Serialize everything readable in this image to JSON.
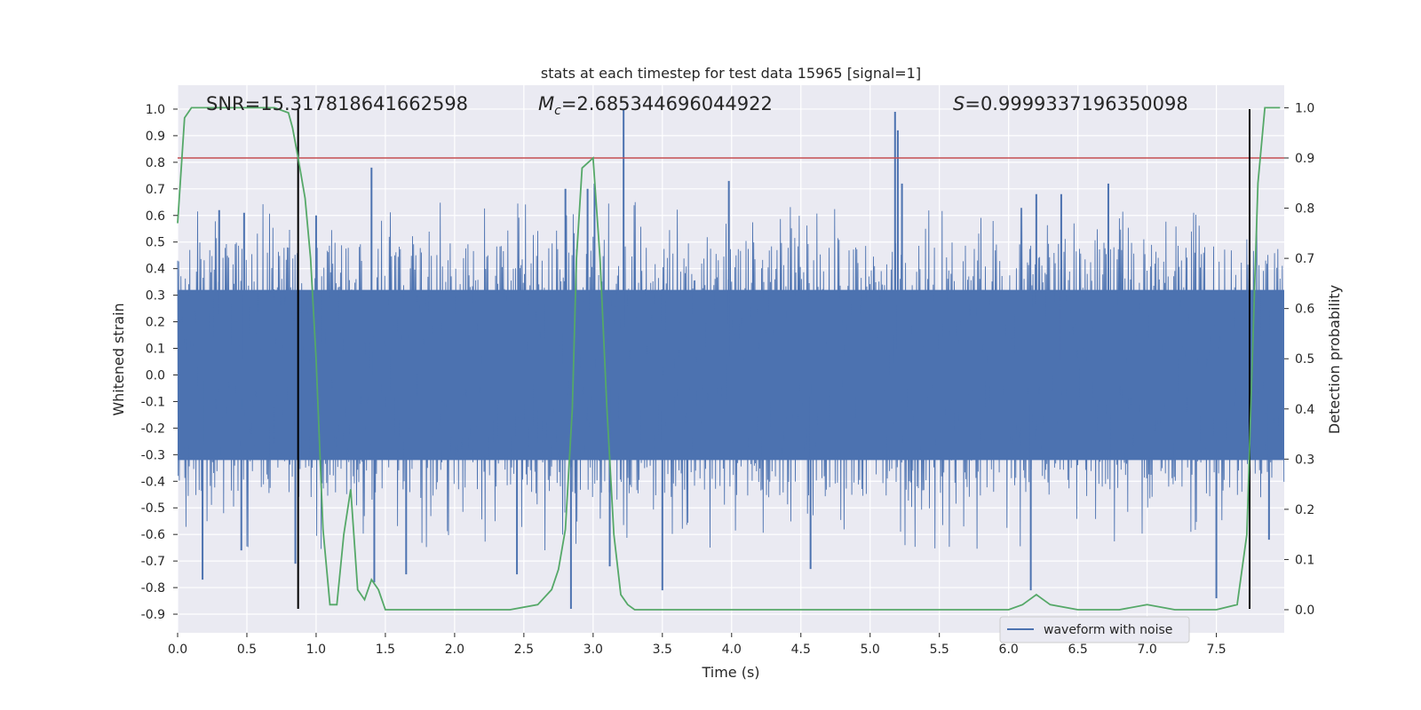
{
  "chart_data": {
    "type": "line",
    "title": "stats at each timestep for test data 15965 [signal=1]",
    "xlabel": "Time (s)",
    "ylabel_left": "Whitened strain",
    "ylabel_right": "Detection probability",
    "xlim": [
      0.0,
      7.99
    ],
    "ylim_left": [
      -0.97,
      1.09
    ],
    "ylim_right": [
      -0.046,
      1.045
    ],
    "x_ticks": [
      "0.0",
      "0.5",
      "1.0",
      "1.5",
      "2.0",
      "2.5",
      "3.0",
      "3.5",
      "4.0",
      "4.5",
      "5.0",
      "5.5",
      "6.0",
      "6.5",
      "7.0",
      "7.5"
    ],
    "y_left_ticks": [
      "1.0",
      "0.9",
      "0.8",
      "0.7",
      "0.6",
      "0.5",
      "0.4",
      "0.3",
      "0.2",
      "0.1",
      "0.0",
      "-0.1",
      "-0.2",
      "-0.3",
      "-0.4",
      "-0.5",
      "-0.6",
      "-0.7",
      "-0.8",
      "-0.9"
    ],
    "y_right_ticks": [
      "1.0",
      "0.9",
      "0.8",
      "0.7",
      "0.6",
      "0.5",
      "0.4",
      "0.3",
      "0.2",
      "0.1",
      "0.0"
    ],
    "grid": true,
    "legend": {
      "location": "lower-right",
      "entries": [
        {
          "label": "waveform with noise",
          "color": "#4c72b0"
        }
      ]
    },
    "annotations": {
      "snr": "SNR=15.317818641662598",
      "mc_symbol": "M",
      "mc_subscript": "c",
      "mc_value": "=2.685344696044922",
      "s_symbol": "S",
      "s_value": "=0.9999337196350098"
    },
    "threshold": {
      "axis": "right",
      "value": 0.9,
      "color": "#c44e52"
    },
    "vertical_markers": {
      "x": [
        0.87,
        7.74
      ],
      "ylim_left": [
        -0.88,
        1.0
      ],
      "color": "#000000"
    },
    "waveform": {
      "name": "waveform with noise",
      "color": "#4c72b0",
      "sample_dt": 0.004,
      "dense_band": [
        -0.32,
        0.32
      ],
      "noise_envelope": [
        -0.46,
        0.45
      ],
      "peaks": [
        {
          "t": 0.18,
          "v": -0.77
        },
        {
          "t": 0.3,
          "v": 0.62
        },
        {
          "t": 0.46,
          "v": -0.66
        },
        {
          "t": 0.48,
          "v": 0.61
        },
        {
          "t": 0.85,
          "v": -0.71
        },
        {
          "t": 1.0,
          "v": 0.6
        },
        {
          "t": 1.4,
          "v": 0.78
        },
        {
          "t": 1.42,
          "v": -0.78
        },
        {
          "t": 1.65,
          "v": -0.75
        },
        {
          "t": 2.45,
          "v": -0.75
        },
        {
          "t": 2.8,
          "v": 0.7
        },
        {
          "t": 2.84,
          "v": -0.88
        },
        {
          "t": 2.96,
          "v": 0.7
        },
        {
          "t": 3.01,
          "v": 0.72
        },
        {
          "t": 3.12,
          "v": -0.72
        },
        {
          "t": 3.22,
          "v": 1.0
        },
        {
          "t": 3.5,
          "v": -0.81
        },
        {
          "t": 3.98,
          "v": 0.73
        },
        {
          "t": 4.57,
          "v": -0.73
        },
        {
          "t": 5.18,
          "v": 0.99
        },
        {
          "t": 5.2,
          "v": 0.92
        },
        {
          "t": 5.23,
          "v": 0.72
        },
        {
          "t": 6.16,
          "v": -0.81
        },
        {
          "t": 6.2,
          "v": 0.68
        },
        {
          "t": 6.38,
          "v": 0.68
        },
        {
          "t": 6.72,
          "v": 0.72
        },
        {
          "t": 7.5,
          "v": -0.84
        },
        {
          "t": 7.88,
          "v": -0.62
        }
      ]
    },
    "probability": {
      "name": "Detection probability",
      "color": "#55a868",
      "x": [
        0.0,
        0.05,
        0.1,
        0.2,
        0.3,
        0.4,
        0.5,
        0.6,
        0.7,
        0.8,
        0.83,
        0.87,
        0.92,
        0.96,
        1.0,
        1.05,
        1.1,
        1.15,
        1.2,
        1.25,
        1.3,
        1.35,
        1.4,
        1.45,
        1.5,
        1.55,
        1.6,
        1.65,
        1.7,
        1.8,
        1.9,
        2.0,
        2.2,
        2.4,
        2.6,
        2.7,
        2.75,
        2.8,
        2.85,
        2.88,
        2.92,
        2.96,
        3.0,
        3.05,
        3.1,
        3.15,
        3.2,
        3.25,
        3.3,
        3.35,
        3.4,
        3.5,
        3.6,
        3.8,
        4.0,
        4.2,
        4.5,
        4.7,
        4.8,
        5.0,
        5.5,
        5.8,
        6.0,
        6.1,
        6.15,
        6.2,
        6.25,
        6.3,
        6.5,
        6.8,
        7.0,
        7.2,
        7.5,
        7.65,
        7.72,
        7.76,
        7.8,
        7.85,
        7.9,
        7.96
      ],
      "y": [
        0.77,
        0.98,
        1.0,
        1.0,
        1.0,
        1.0,
        1.0,
        1.0,
        1.0,
        0.99,
        0.96,
        0.9,
        0.82,
        0.7,
        0.5,
        0.16,
        0.01,
        0.01,
        0.15,
        0.24,
        0.04,
        0.02,
        0.06,
        0.04,
        0.0,
        0.0,
        0.0,
        0.0,
        0.0,
        0.0,
        0.0,
        0.0,
        0.0,
        0.0,
        0.01,
        0.04,
        0.08,
        0.16,
        0.4,
        0.7,
        0.88,
        0.89,
        0.9,
        0.7,
        0.4,
        0.15,
        0.03,
        0.01,
        0.0,
        0.0,
        0.0,
        0.0,
        0.0,
        0.0,
        0.0,
        0.0,
        0.0,
        0.0,
        0.0,
        0.0,
        0.0,
        0.0,
        0.0,
        0.01,
        0.02,
        0.03,
        0.02,
        0.01,
        0.0,
        0.0,
        0.01,
        0.0,
        0.0,
        0.01,
        0.15,
        0.5,
        0.85,
        1.0,
        1.0,
        1.0
      ]
    }
  }
}
